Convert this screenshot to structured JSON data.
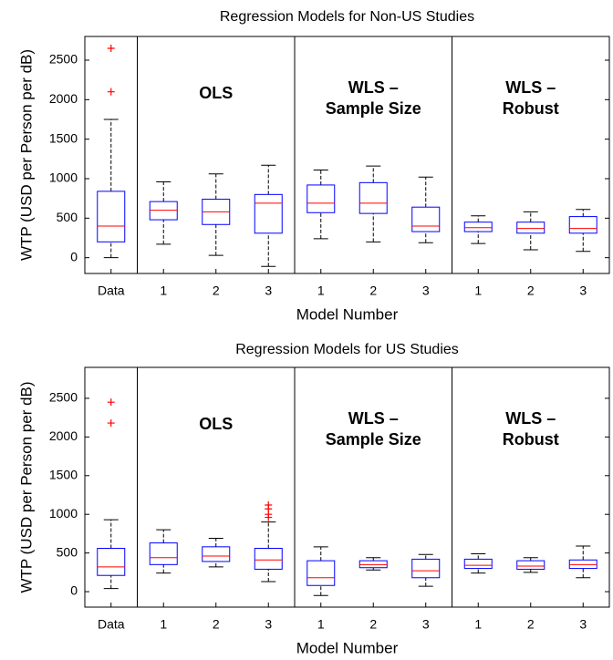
{
  "chart_data": [
    {
      "type": "box",
      "title": "Regression Models for Non-US Studies",
      "x_label": "Model Number",
      "y_label": "WTP (USD per Person per dB)",
      "categories": [
        "Data",
        "1",
        "2",
        "3",
        "1",
        "2",
        "3",
        "1",
        "2",
        "3"
      ],
      "group_labels": [
        [
          "OLS"
        ],
        [
          "WLS –",
          "Sample Size"
        ],
        [
          "WLS –",
          "Robust"
        ]
      ],
      "boxes": [
        {
          "whislo": 0,
          "q1": 200,
          "med": 400,
          "q3": 840,
          "whishi": 1750,
          "fliers": [
            2100,
            2650
          ]
        },
        {
          "whislo": 170,
          "q1": 480,
          "med": 600,
          "q3": 710,
          "whishi": 960,
          "fliers": []
        },
        {
          "whislo": 30,
          "q1": 420,
          "med": 580,
          "q3": 740,
          "whishi": 1060,
          "fliers": []
        },
        {
          "whislo": -110,
          "q1": 310,
          "med": 690,
          "q3": 800,
          "whishi": 1170,
          "fliers": []
        },
        {
          "whislo": 240,
          "q1": 570,
          "med": 690,
          "q3": 920,
          "whishi": 1110,
          "fliers": []
        },
        {
          "whislo": 200,
          "q1": 560,
          "med": 690,
          "q3": 950,
          "whishi": 1160,
          "fliers": []
        },
        {
          "whislo": 190,
          "q1": 330,
          "med": 400,
          "q3": 640,
          "whishi": 1020,
          "fliers": []
        },
        {
          "whislo": 180,
          "q1": 330,
          "med": 380,
          "q3": 450,
          "whishi": 530,
          "fliers": []
        },
        {
          "whislo": 100,
          "q1": 310,
          "med": 370,
          "q3": 450,
          "whishi": 580,
          "fliers": []
        },
        {
          "whislo": 80,
          "q1": 310,
          "med": 370,
          "q3": 520,
          "whishi": 610,
          "fliers": []
        }
      ],
      "ylim": [
        -200,
        2800
      ],
      "yticks": [
        0,
        500,
        1000,
        1500,
        2000,
        2500
      ],
      "box_color": "#0000ff",
      "median_color": "#ff0000",
      "whisker_color": "#000000",
      "flier_color": "#ff0000"
    },
    {
      "type": "box",
      "title": "Regression Models for US Studies",
      "x_label": "Model Number",
      "y_label": "WTP (USD per Person per dB)",
      "categories": [
        "Data",
        "1",
        "2",
        "3",
        "1",
        "2",
        "3",
        "1",
        "2",
        "3"
      ],
      "group_labels": [
        [
          "OLS"
        ],
        [
          "WLS –",
          "Sample Size"
        ],
        [
          "WLS –",
          "Robust"
        ]
      ],
      "boxes": [
        {
          "whislo": 40,
          "q1": 210,
          "med": 320,
          "q3": 560,
          "whishi": 930,
          "fliers": [
            2180,
            2450
          ]
        },
        {
          "whislo": 240,
          "q1": 350,
          "med": 440,
          "q3": 630,
          "whishi": 800,
          "fliers": []
        },
        {
          "whislo": 320,
          "q1": 390,
          "med": 460,
          "q3": 580,
          "whishi": 690,
          "fliers": []
        },
        {
          "whislo": 130,
          "q1": 290,
          "med": 410,
          "q3": 560,
          "whishi": 900,
          "fliers": [
            960,
            1000,
            1070,
            1120
          ]
        },
        {
          "whislo": -50,
          "q1": 80,
          "med": 180,
          "q3": 400,
          "whishi": 580,
          "fliers": []
        },
        {
          "whislo": 280,
          "q1": 310,
          "med": 350,
          "q3": 400,
          "whishi": 440,
          "fliers": []
        },
        {
          "whislo": 70,
          "q1": 180,
          "med": 270,
          "q3": 420,
          "whishi": 480,
          "fliers": []
        },
        {
          "whislo": 240,
          "q1": 300,
          "med": 340,
          "q3": 420,
          "whishi": 490,
          "fliers": []
        },
        {
          "whislo": 250,
          "q1": 290,
          "med": 330,
          "q3": 400,
          "whishi": 440,
          "fliers": []
        },
        {
          "whislo": 180,
          "q1": 300,
          "med": 350,
          "q3": 410,
          "whishi": 590,
          "fliers": []
        }
      ],
      "ylim": [
        -200,
        2900
      ],
      "yticks": [
        0,
        500,
        1000,
        1500,
        2000,
        2500
      ],
      "box_color": "#0000ff",
      "median_color": "#ff0000",
      "whisker_color": "#000000",
      "flier_color": "#ff0000"
    }
  ]
}
